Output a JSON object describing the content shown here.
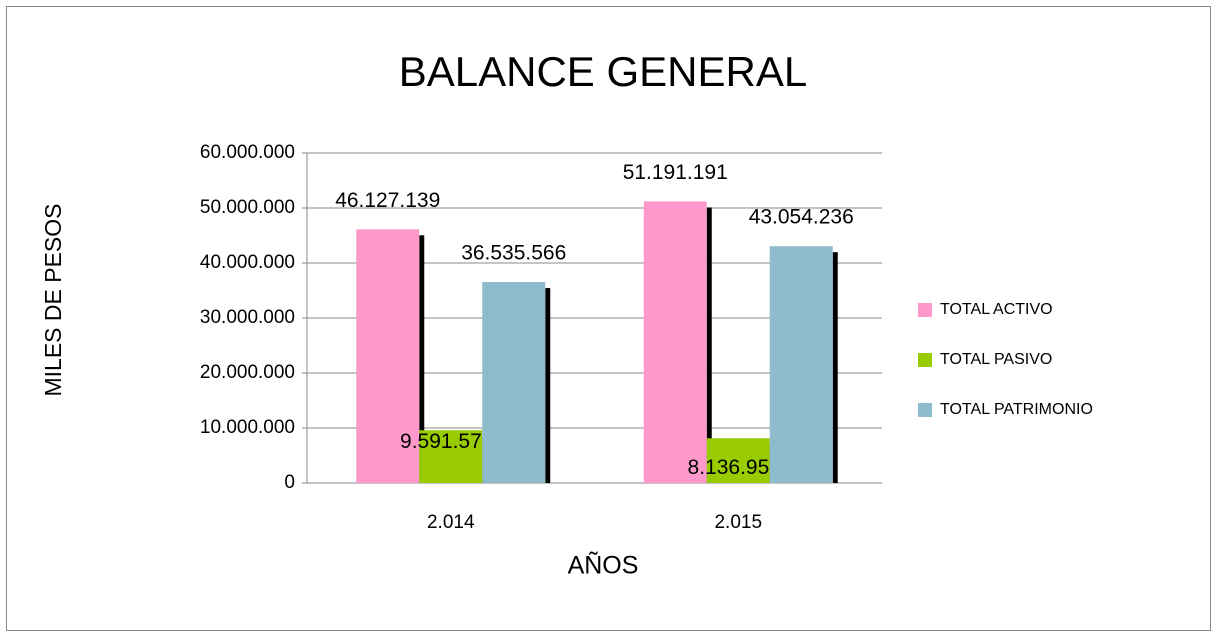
{
  "chart_data": {
    "type": "bar",
    "title": "BALANCE GENERAL",
    "x_label": "AÑOS",
    "y_label": "MILES DE PESOS",
    "categories": [
      "2.014",
      "2.015"
    ],
    "series": [
      {
        "name": "TOTAL ACTIVO",
        "color": "#ff99cc",
        "values": [
          46127139,
          51191191
        ],
        "value_labels": [
          "46.127.139",
          "51.191.191"
        ]
      },
      {
        "name": "TOTAL PASIVO",
        "color": "#99cc00",
        "values": [
          9591573,
          8136955
        ],
        "value_labels": [
          "9.591.573",
          "8.136.955"
        ]
      },
      {
        "name": "TOTAL PATRIMONIO",
        "color": "#8fbccd",
        "values": [
          36535566,
          43054236
        ],
        "value_labels": [
          "36.535.566",
          "43.054.236"
        ]
      }
    ],
    "ylim": [
      0,
      60000000
    ],
    "yticks": [
      0,
      {
        "value": 10000000,
        "label": "10.000.000"
      },
      {
        "value": 20000000,
        "label": "20.000.000"
      },
      {
        "value": 30000000,
        "label": "30.000.000"
      },
      {
        "value": 40000000,
        "label": "40.000.000"
      },
      {
        "value": 50000000,
        "label": "50.000.000"
      },
      {
        "value": 60000000,
        "label": "60.000.000"
      }
    ],
    "grid": true,
    "legend": "right"
  }
}
